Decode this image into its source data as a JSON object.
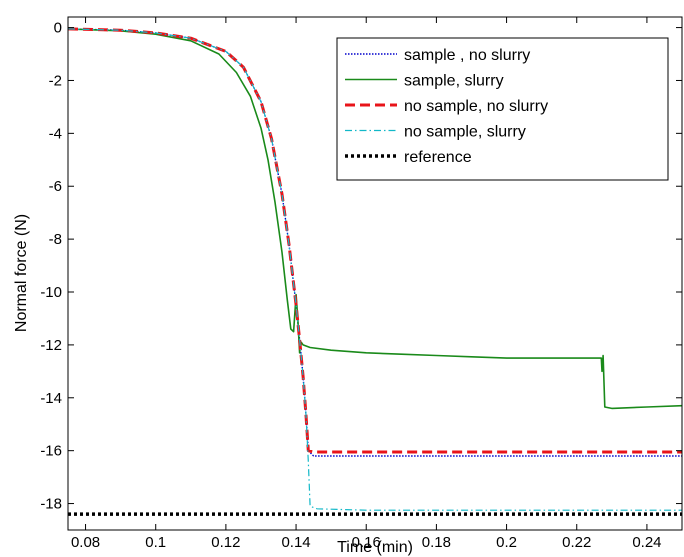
{
  "chart_data": {
    "type": "line",
    "xlabel": "Time (min)",
    "ylabel": "Normal force (N)",
    "xlim": [
      0.075,
      0.25
    ],
    "ylim": [
      -19,
      0.4
    ],
    "xticks": [
      0.08,
      0.1,
      0.12,
      0.14,
      0.16,
      0.18,
      0.2,
      0.22,
      0.24
    ],
    "xtick_labels": [
      "0.08",
      "0.1",
      "0.12",
      "0.14",
      "0.16",
      "0.18",
      "0.2",
      "0.22",
      "0.24"
    ],
    "yticks": [
      0,
      -2,
      -4,
      -6,
      -8,
      -10,
      -12,
      -14,
      -16,
      -18
    ],
    "ytick_labels": [
      "0",
      "-2",
      "-4",
      "-6",
      "-8",
      "-10",
      "-12",
      "-14",
      "-16",
      "-18"
    ],
    "grid": false,
    "legend_position": "top-right",
    "series": [
      {
        "name": "sample , no slurry",
        "color": "#0000cc",
        "style": "dotted",
        "x": [
          0.075,
          0.09,
          0.1,
          0.11,
          0.12,
          0.125,
          0.13,
          0.133,
          0.136,
          0.138,
          0.14,
          0.141,
          0.142,
          0.1428,
          0.1435,
          0.145,
          0.16,
          0.2,
          0.25
        ],
        "y": [
          -0.05,
          -0.1,
          -0.2,
          -0.4,
          -0.9,
          -1.5,
          -2.8,
          -4.2,
          -6.3,
          -8.2,
          -10.5,
          -11.8,
          -13.2,
          -14.6,
          -16.0,
          -16.2,
          -16.2,
          -16.2,
          -16.2
        ]
      },
      {
        "name": "sample, slurry",
        "color": "#1a8a1a",
        "style": "solid",
        "x": [
          0.075,
          0.09,
          0.1,
          0.11,
          0.118,
          0.123,
          0.127,
          0.13,
          0.132,
          0.134,
          0.136,
          0.1375,
          0.1385,
          0.1393,
          0.14,
          0.1405,
          0.141,
          0.1415,
          0.142,
          0.144,
          0.15,
          0.16,
          0.17,
          0.18,
          0.19,
          0.2,
          0.21,
          0.22,
          0.227,
          0.2272,
          0.2275,
          0.228,
          0.23,
          0.24,
          0.25
        ],
        "y": [
          -0.05,
          -0.12,
          -0.25,
          -0.5,
          -1.0,
          -1.7,
          -2.6,
          -3.8,
          -5.0,
          -6.6,
          -8.5,
          -10.3,
          -11.4,
          -11.5,
          -10.1,
          -11.0,
          -12.3,
          -11.9,
          -12.0,
          -12.1,
          -12.2,
          -12.3,
          -12.35,
          -12.4,
          -12.45,
          -12.5,
          -12.5,
          -12.5,
          -12.5,
          -13.0,
          -12.4,
          -14.35,
          -14.4,
          -14.35,
          -14.3
        ]
      },
      {
        "name": "no sample, no slurry",
        "color": "#e8141a",
        "style": "dashed",
        "x": [
          0.075,
          0.09,
          0.1,
          0.11,
          0.12,
          0.125,
          0.13,
          0.133,
          0.136,
          0.138,
          0.14,
          0.141,
          0.142,
          0.1428,
          0.1435,
          0.145,
          0.16,
          0.2,
          0.25
        ],
        "y": [
          -0.05,
          -0.1,
          -0.2,
          -0.4,
          -0.9,
          -1.5,
          -2.8,
          -4.2,
          -6.3,
          -8.2,
          -10.5,
          -11.8,
          -13.2,
          -14.6,
          -16.0,
          -16.05,
          -16.05,
          -16.05,
          -16.05
        ]
      },
      {
        "name": "no sample, slurry",
        "color": "#12b8c8",
        "style": "dashdot",
        "x": [
          0.075,
          0.09,
          0.1,
          0.11,
          0.12,
          0.125,
          0.13,
          0.133,
          0.136,
          0.138,
          0.14,
          0.141,
          0.142,
          0.1428,
          0.1435,
          0.144,
          0.146,
          0.16,
          0.2,
          0.25
        ],
        "y": [
          -0.05,
          -0.1,
          -0.2,
          -0.4,
          -0.9,
          -1.5,
          -2.8,
          -4.2,
          -6.3,
          -8.2,
          -10.5,
          -11.8,
          -13.2,
          -14.6,
          -16.4,
          -18.1,
          -18.2,
          -18.25,
          -18.25,
          -18.25
        ]
      },
      {
        "name": "reference",
        "color": "#000000",
        "style": "dotted-thick",
        "x": [
          0.075,
          0.25
        ],
        "y": [
          -18.4,
          -18.4
        ]
      }
    ]
  }
}
